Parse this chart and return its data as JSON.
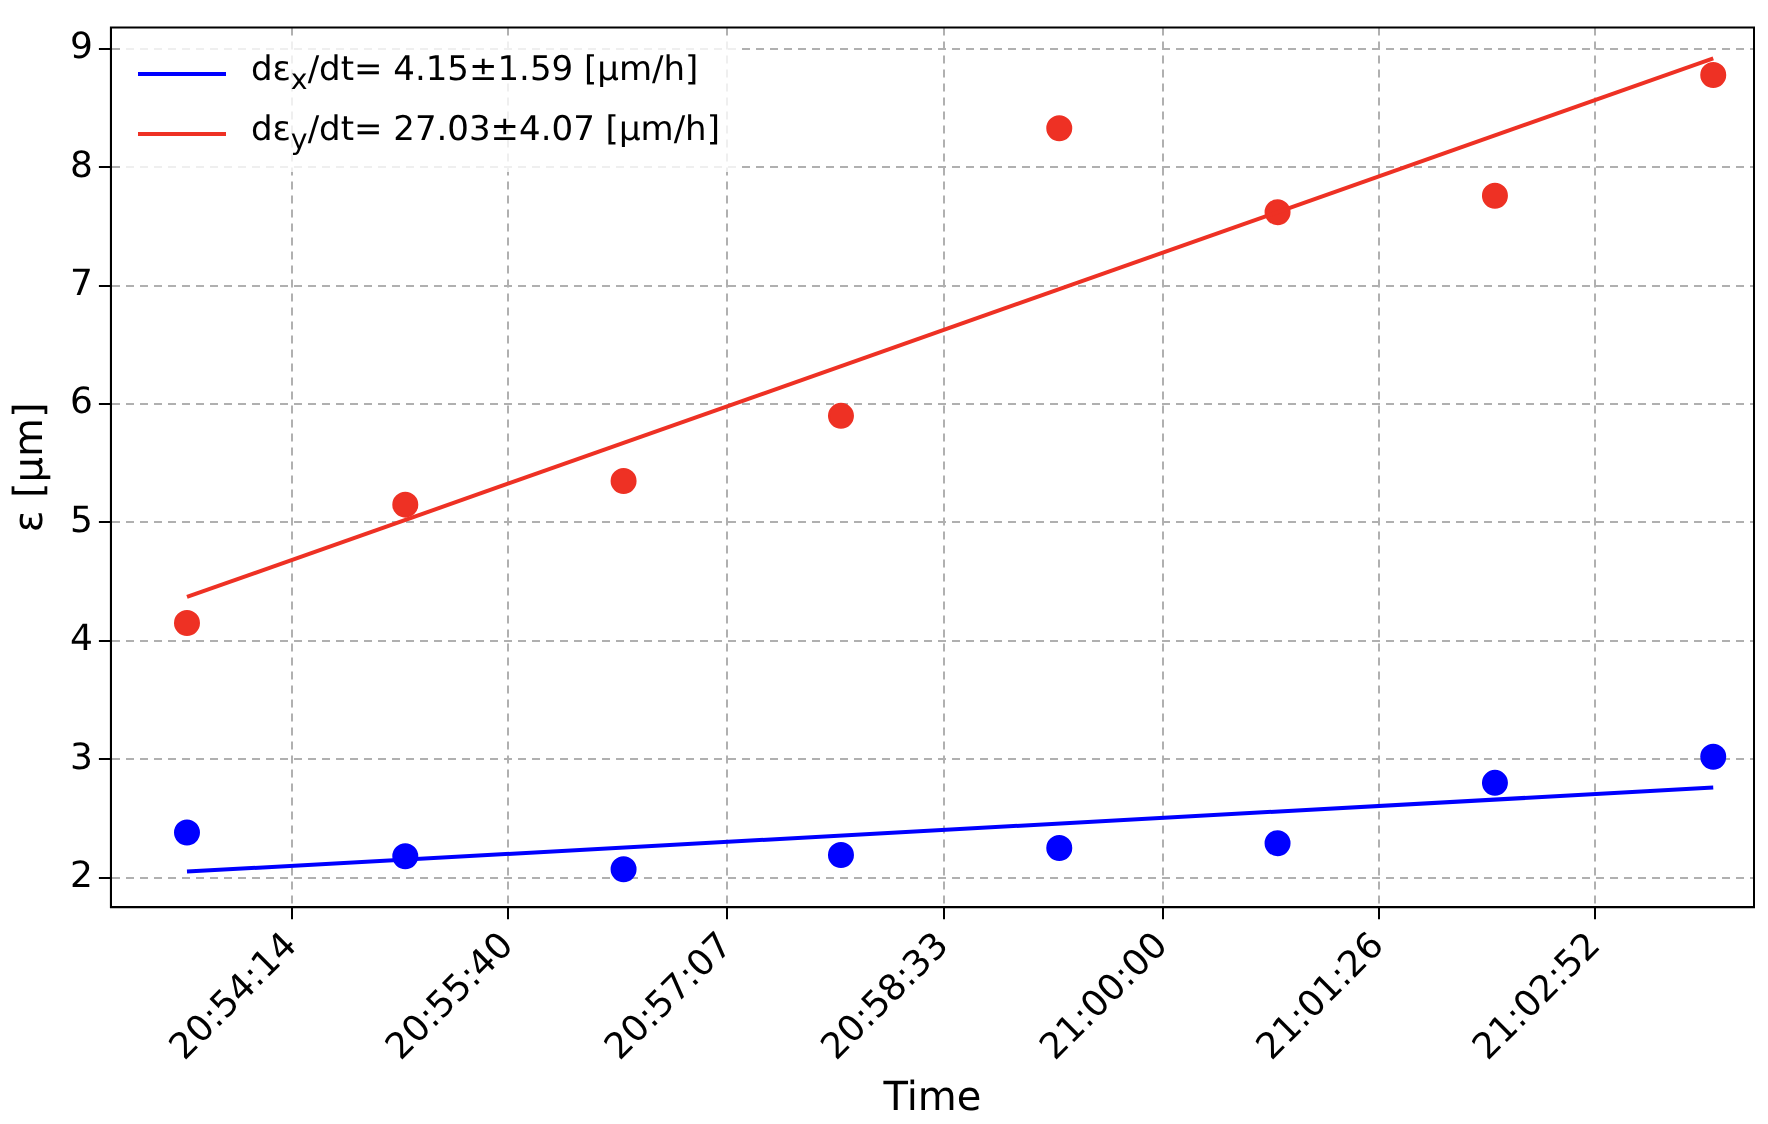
{
  "chart_data": {
    "type": "scatter",
    "xlabel": "Time",
    "ylabel": "ε [μm]",
    "xlim": [
      20.8839,
      21.0653
    ],
    "ylim": [
      1.75,
      9.18
    ],
    "xticks": [
      {
        "value": 20.903889,
        "label": "20:54:14"
      },
      {
        "value": 20.927778,
        "label": "20:55:40"
      },
      {
        "value": 20.951944,
        "label": "20:57:07"
      },
      {
        "value": 20.975833,
        "label": "20:58:33"
      },
      {
        "value": 21.0,
        "label": "21:00:00"
      },
      {
        "value": 21.023889,
        "label": "21:01:26"
      },
      {
        "value": 21.047778,
        "label": "21:02:52"
      }
    ],
    "yticks": [
      2,
      3,
      4,
      5,
      6,
      7,
      8,
      9
    ],
    "grid": true,
    "legend": "top left",
    "series": [
      {
        "name": "dε$_{x}$/dt= 4.15±1.59 [μm/h]",
        "type": "line",
        "color": "#0000ff",
        "x": [
          20.8923,
          21.0608
        ],
        "values": [
          2.05,
          2.76
        ],
        "marker": "none"
      },
      {
        "name": "dε$_{y}$/dt= 27.03±4.07 [μm/h]",
        "type": "line",
        "color": "#ee3124",
        "x": [
          20.8923,
          21.0608
        ],
        "values": [
          4.37,
          8.92
        ],
        "marker": "none"
      },
      {
        "type": "scatter",
        "color": "#0000ff",
        "x": [
          20.8923,
          20.9164,
          20.9405,
          20.9645,
          20.9886,
          21.0127,
          21.0367,
          21.0608
        ],
        "values": [
          2.38,
          2.18,
          2.07,
          2.19,
          2.25,
          2.29,
          2.8,
          3.02
        ],
        "marker": "circle"
      },
      {
        "type": "scatter",
        "color": "#ee3124",
        "x": [
          20.8923,
          20.9164,
          20.9405,
          20.9645,
          20.9886,
          21.0127,
          21.0367,
          21.0608
        ],
        "values": [
          4.15,
          5.15,
          5.35,
          5.9,
          8.33,
          7.62,
          7.76,
          8.78
        ],
        "marker": "circle"
      }
    ]
  }
}
